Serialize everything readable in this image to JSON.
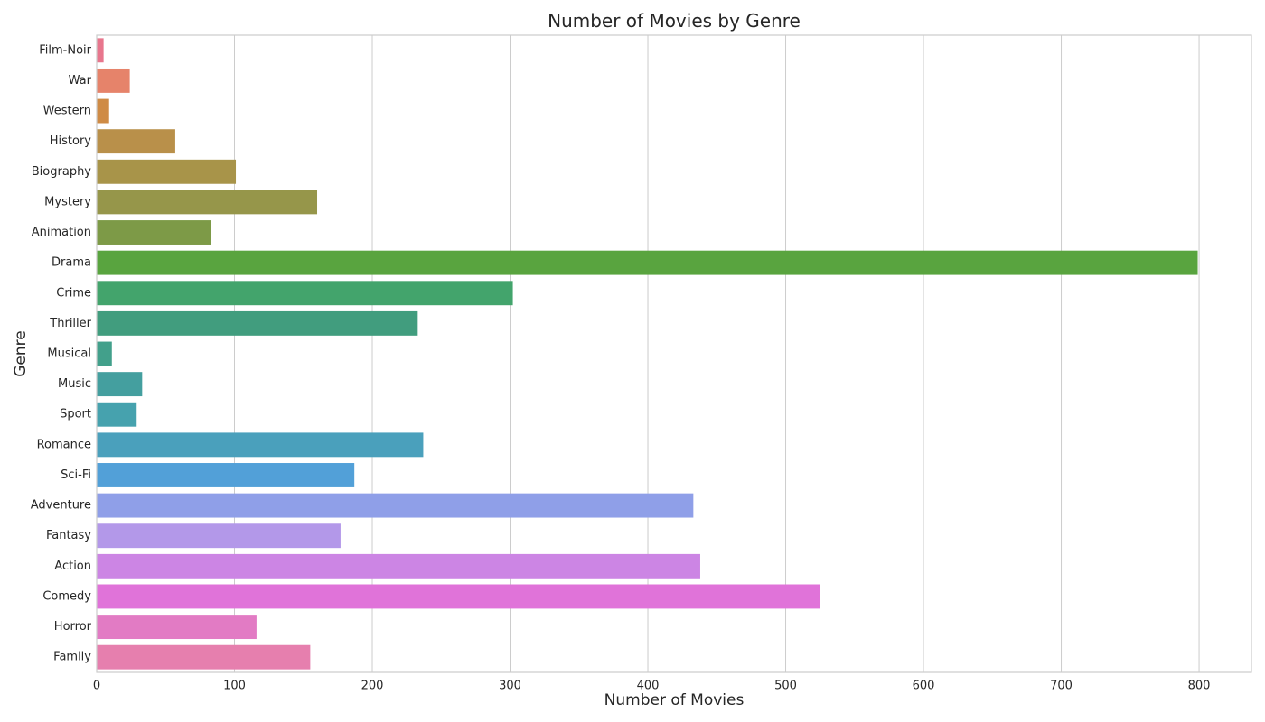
{
  "chart_data": {
    "type": "bar",
    "orientation": "horizontal",
    "title": "Number of Movies by Genre",
    "xlabel": "Number of Movies",
    "ylabel": "Genre",
    "xlim": [
      0,
      838
    ],
    "xticks": [
      0,
      100,
      200,
      300,
      400,
      500,
      600,
      700,
      800
    ],
    "grid": "vertical",
    "legend": "none",
    "categories": [
      "Film-Noir",
      "War",
      "Western",
      "History",
      "Biography",
      "Mystery",
      "Animation",
      "Drama",
      "Crime",
      "Thriller",
      "Musical",
      "Music",
      "Sport",
      "Romance",
      "Sci-Fi",
      "Adventure",
      "Fantasy",
      "Action",
      "Comedy",
      "Horror",
      "Family"
    ],
    "values": [
      5,
      24,
      9,
      57,
      101,
      160,
      83,
      799,
      302,
      233,
      11,
      33,
      29,
      237,
      187,
      433,
      177,
      438,
      525,
      116,
      155
    ],
    "colors": [
      "#e8768d",
      "#e6836a",
      "#cf8b45",
      "#b9904a",
      "#a89449",
      "#96964a",
      "#7d9a47",
      "#59a43f",
      "#43a46c",
      "#419d7e",
      "#42a08b",
      "#449f9f",
      "#46a2ae",
      "#4aa0bc",
      "#52a0d8",
      "#8f9fe8",
      "#b398e9",
      "#cc85e4",
      "#e073d9",
      "#e27bc4",
      "#e67fae"
    ]
  }
}
